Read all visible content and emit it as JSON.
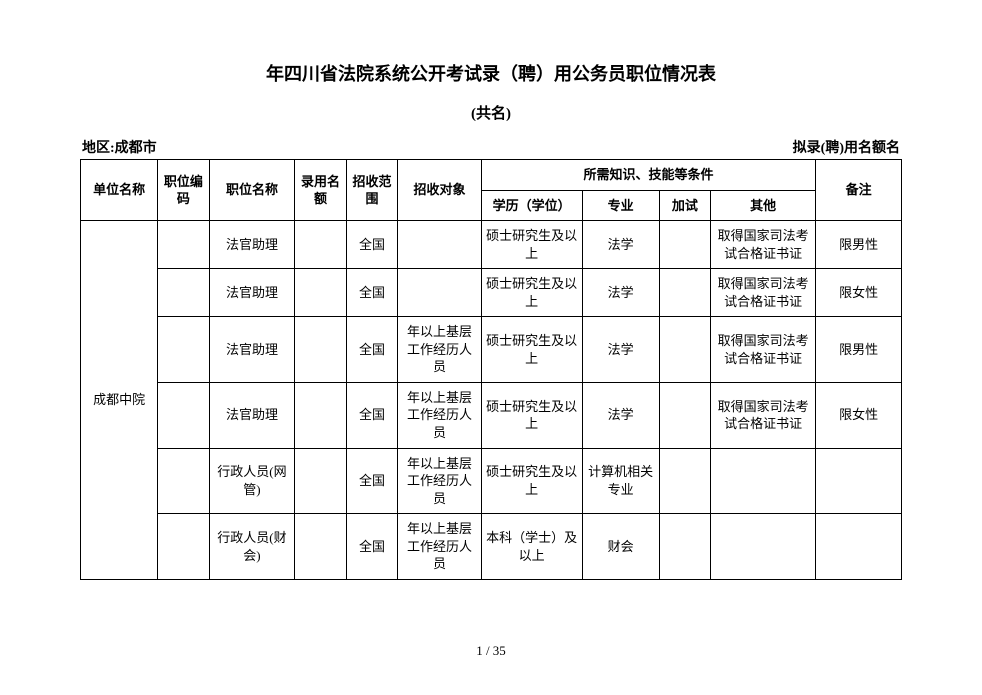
{
  "title": "年四川省法院系统公开考试录（聘）用公务员职位情况表",
  "subtitle": "(共名)",
  "meta": {
    "region_label": "地区:成都市",
    "quota_label": "拟录(聘)用名额名"
  },
  "header": {
    "unit": "单位名称",
    "code": "职位编码",
    "position": "职位名称",
    "hire_quota": "录用名额",
    "recruit_scope": "招收范围",
    "recruit_target": "招收对象",
    "req_group": "所需知识、技能等条件",
    "edu": "学历（学位）",
    "major": "专业",
    "extra_exam": "加试",
    "other": "其他",
    "remark": "备注"
  },
  "unit_name": "成都中院",
  "rows": [
    {
      "position": "法官助理",
      "scope": "全国",
      "target": "",
      "edu": "硕士研究生及以上",
      "major": "法学",
      "extra_exam": "",
      "other": "取得国家司法考试合格证书证",
      "remark": "限男性"
    },
    {
      "position": "法官助理",
      "scope": "全国",
      "target": "",
      "edu": "硕士研究生及以上",
      "major": "法学",
      "extra_exam": "",
      "other": "取得国家司法考试合格证书证",
      "remark": "限女性"
    },
    {
      "position": "法官助理",
      "scope": "全国",
      "target": "年以上基层工作经历人员",
      "edu": "硕士研究生及以上",
      "major": "法学",
      "extra_exam": "",
      "other": "取得国家司法考试合格证书证",
      "remark": "限男性"
    },
    {
      "position": "法官助理",
      "scope": "全国",
      "target": "年以上基层工作经历人员",
      "edu": "硕士研究生及以上",
      "major": "法学",
      "extra_exam": "",
      "other": "取得国家司法考试合格证书证",
      "remark": "限女性"
    },
    {
      "position": "行政人员(网管)",
      "scope": "全国",
      "target": "年以上基层工作经历人员",
      "edu": "硕士研究生及以上",
      "major": "计算机相关专业",
      "extra_exam": "",
      "other": "",
      "remark": ""
    },
    {
      "position": "行政人员(财会)",
      "scope": "全国",
      "target": "年以上基层工作经历人员",
      "edu": "本科（学士）及以上",
      "major": "财会",
      "extra_exam": "",
      "other": "",
      "remark": ""
    }
  ],
  "footer": {
    "page": "1 / 35"
  }
}
